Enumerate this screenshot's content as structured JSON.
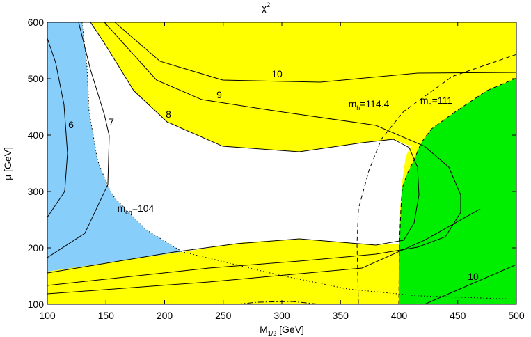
{
  "chart_data": {
    "type": "contour",
    "title": {
      "text": "χ",
      "sup": "2"
    },
    "xlabel": {
      "text": "M",
      "sub": "1/2",
      "rest": " [GeV]"
    },
    "ylabel": "μ [GeV]",
    "xlim": [
      100,
      500
    ],
    "ylim": [
      100,
      600
    ],
    "xticks": [
      100,
      150,
      200,
      250,
      300,
      350,
      400,
      450,
      500
    ],
    "yticks": [
      100,
      200,
      300,
      400,
      500,
      600
    ],
    "background_color": "#ffff00",
    "regions": [
      {
        "color": "#87cefa",
        "x": [
          100,
          129.7,
          133.8,
          135.6,
          142.7,
          151.6,
          157.6,
          184.3,
          215.1,
          100
        ],
        "y": [
          600,
          600,
          522,
          442,
          356,
          309,
          288,
          232,
          193,
          158
        ]
      },
      {
        "color": "#ffffff",
        "x": [
          129.7,
          136.8,
          148.7,
          173.6,
          202.1,
          249.6,
          314.8,
          368.3,
          395,
          409.8,
          405.6,
          402.7,
          400.9,
          399.7,
          380.1,
          314.8,
          267.4,
          215.1,
          184.3,
          157.6,
          151.6,
          142.7,
          135.6,
          133.8
        ],
        "y": [
          600,
          600,
          563,
          479,
          423.4,
          380.2,
          370.4,
          386.4,
          392.6,
          380.2,
          361.7,
          318.5,
          269.1,
          207.4,
          204.9,
          216,
          209.9,
          192.6,
          232,
          287.7,
          308.6,
          356,
          442,
          522
        ]
      },
      {
        "color": "#00ee00",
        "x": [
          500,
          475,
          448.4,
          427.6,
          418.7,
          412.8,
          406.8,
          402.7,
          401.5,
          400.3,
          399.7,
          500
        ],
        "y": [
          501,
          479,
          442,
          411,
          386,
          356,
          331,
          306,
          269,
          207,
          100,
          100
        ]
      }
    ],
    "lines": [
      {
        "style": "solid",
        "x": [
          100,
          107.1,
          114.2,
          117.2,
          114.8,
          100
        ],
        "y": [
          571.6,
          528.4,
          454.3,
          367.9,
          300,
          254.3
        ]
      },
      {
        "style": "solid",
        "x": [
          126.7,
          136.8,
          148.7,
          152.8,
          151.6,
          132,
          100
        ],
        "y": [
          600,
          516,
          435.8,
          398.8,
          312.3,
          225.9,
          182.7
        ]
      },
      {
        "style": "solid",
        "x": [
          136.8,
          148.7,
          173.6,
          202.1,
          249.6,
          314.8,
          368.3,
          395,
          408.6,
          415.7,
          416.9,
          412.8,
          403.9,
          380.1,
          314.8,
          261.4,
          208,
          100
        ],
        "y": [
          600,
          563,
          479,
          423.4,
          380.2,
          370.4,
          386.4,
          392.6,
          377.8,
          343.2,
          293.8,
          244.4,
          213.6,
          204.9,
          216,
          207.4,
          192.6,
          155.6
        ]
      },
      {
        "style": "solid",
        "x": [
          148.7,
          193.2,
          231.8,
          297,
          380.1,
          421.7,
          442.4,
          452.5,
          452.5,
          439.5,
          415.7,
          380.1,
          314.8,
          237.7,
          100
        ],
        "y": [
          600,
          497.5,
          462.9,
          442,
          417.3,
          380.2,
          343.2,
          293.8,
          262.9,
          219.8,
          201.2,
          188.9,
          176.5,
          164.2,
          133.3
        ]
      },
      {
        "style": "solid",
        "x": [
          157.6,
          196.1,
          249.6,
          332.7,
          415.7,
          500
        ],
        "y": [
          600,
          530.9,
          497.5,
          493.8,
          509.9,
          511.1
        ]
      },
      {
        "style": "solid",
        "x": [
          100,
          237.7,
          368.3,
          421.7,
          469.2
        ],
        "y": [
          118.5,
          139.5,
          164.2,
          213.6,
          269.1
        ]
      },
      {
        "style": "solid",
        "x": [
          421.7,
          500
        ],
        "y": [
          100,
          170.4
        ]
      },
      {
        "style": "dotted",
        "x": [
          129.7,
          133.8,
          135.6,
          142.7,
          151.6,
          157.6,
          184.3,
          215.1,
          297,
          356.4,
          415.7,
          500
        ],
        "y": [
          600,
          522,
          442,
          356,
          309,
          288,
          232,
          193,
          152,
          127,
          115,
          109
        ]
      },
      {
        "style": "dashed",
        "x": [
          500,
          445.4,
          403.9,
          384.9,
          374.2,
          365.3,
          364.1,
          365.3
        ],
        "y": [
          543,
          504,
          442,
          393,
          337,
          269,
          207,
          100
        ]
      },
      {
        "style": "dashed",
        "x": [
          500,
          475,
          448.4,
          427.6,
          418.7,
          412.8,
          406.8,
          402.7,
          401.5,
          400.3,
          399.7
        ],
        "y": [
          501,
          479,
          442,
          411,
          386,
          356,
          331,
          306,
          269,
          207,
          100
        ]
      },
      {
        "style": "dashdot",
        "x": [
          261.4,
          279.2,
          308.9,
          332.7
        ],
        "y": [
          100,
          103.7,
          104.9,
          100
        ]
      }
    ],
    "annotations": [
      {
        "text": "6"
      },
      {
        "text": "7"
      },
      {
        "text": "8"
      },
      {
        "text": "9"
      },
      {
        "text": "10"
      },
      {
        "text": "10"
      },
      {
        "text": "m",
        "sub": "h",
        "rest": "=114.4"
      },
      {
        "text": "m",
        "sub": "h",
        "rest": "=111"
      },
      {
        "text": "m",
        "sub": "ch",
        "rest": "=104"
      }
    ]
  }
}
